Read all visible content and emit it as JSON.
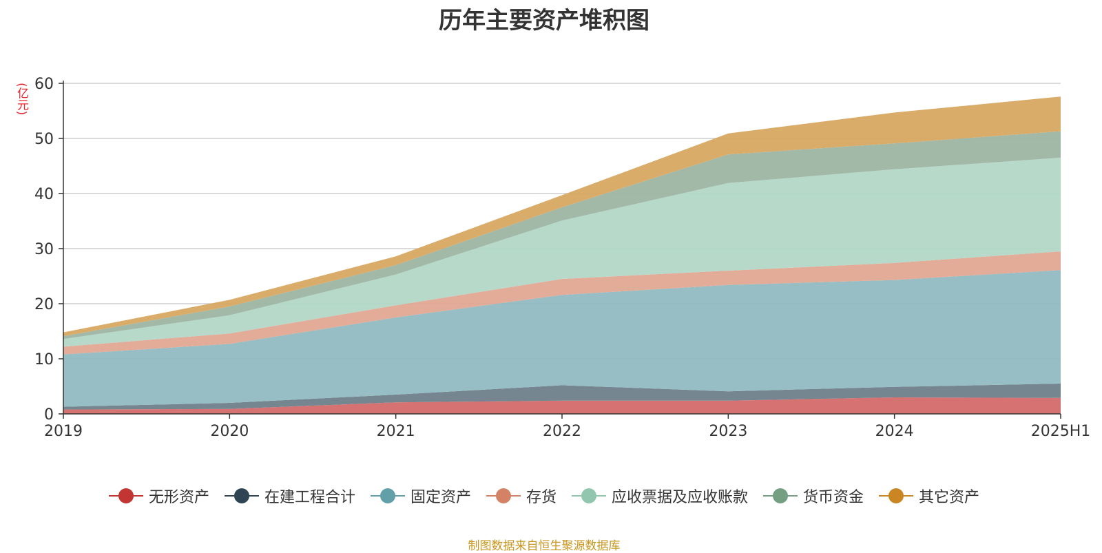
{
  "chart_data": {
    "type": "area",
    "stacked": true,
    "title": "历年主要资产堆积图",
    "unit_label": "(亿元)",
    "categories": [
      "2019",
      "2020",
      "2021",
      "2022",
      "2023",
      "2024",
      "2025H1"
    ],
    "ylim": [
      0,
      60
    ],
    "yticks": [
      0,
      10,
      20,
      30,
      40,
      50,
      60
    ],
    "grid": true,
    "legend_position": "bottom",
    "series": [
      {
        "name": "无形资产",
        "color": "#c23531",
        "fill": "#d46a6a",
        "values": [
          0.8,
          0.9,
          2.1,
          2.4,
          2.4,
          3.0,
          2.9
        ]
      },
      {
        "name": "在建工程合计",
        "color": "#2f4554",
        "fill": "#6e7f8a",
        "values": [
          0.5,
          1.1,
          1.4,
          2.8,
          1.7,
          1.9,
          2.6
        ]
      },
      {
        "name": "固定资产",
        "color": "#61a0a8",
        "fill": "#90bac1",
        "values": [
          9.5,
          10.7,
          14.0,
          16.4,
          19.3,
          19.4,
          20.6
        ]
      },
      {
        "name": "存货",
        "color": "#d48265",
        "fill": "#e0a894",
        "values": [
          1.4,
          1.9,
          2.2,
          2.9,
          2.6,
          3.1,
          3.4
        ]
      },
      {
        "name": "应收票据及应收账款",
        "color": "#91c7ae",
        "fill": "#b2d7c6",
        "values": [
          1.4,
          3.3,
          5.6,
          10.6,
          15.9,
          17.0,
          17.0
        ]
      },
      {
        "name": "货币资金",
        "color": "#749f83",
        "fill": "#9db5a3",
        "values": [
          0.5,
          1.6,
          1.7,
          2.4,
          5.2,
          4.7,
          4.8
        ]
      },
      {
        "name": "其它资产",
        "color": "#ca8622",
        "fill": "#d7a862",
        "values": [
          0.7,
          1.2,
          1.6,
          2.2,
          3.8,
          5.6,
          6.3
        ]
      }
    ]
  },
  "source_note": "制图数据来自恒生聚源数据库"
}
